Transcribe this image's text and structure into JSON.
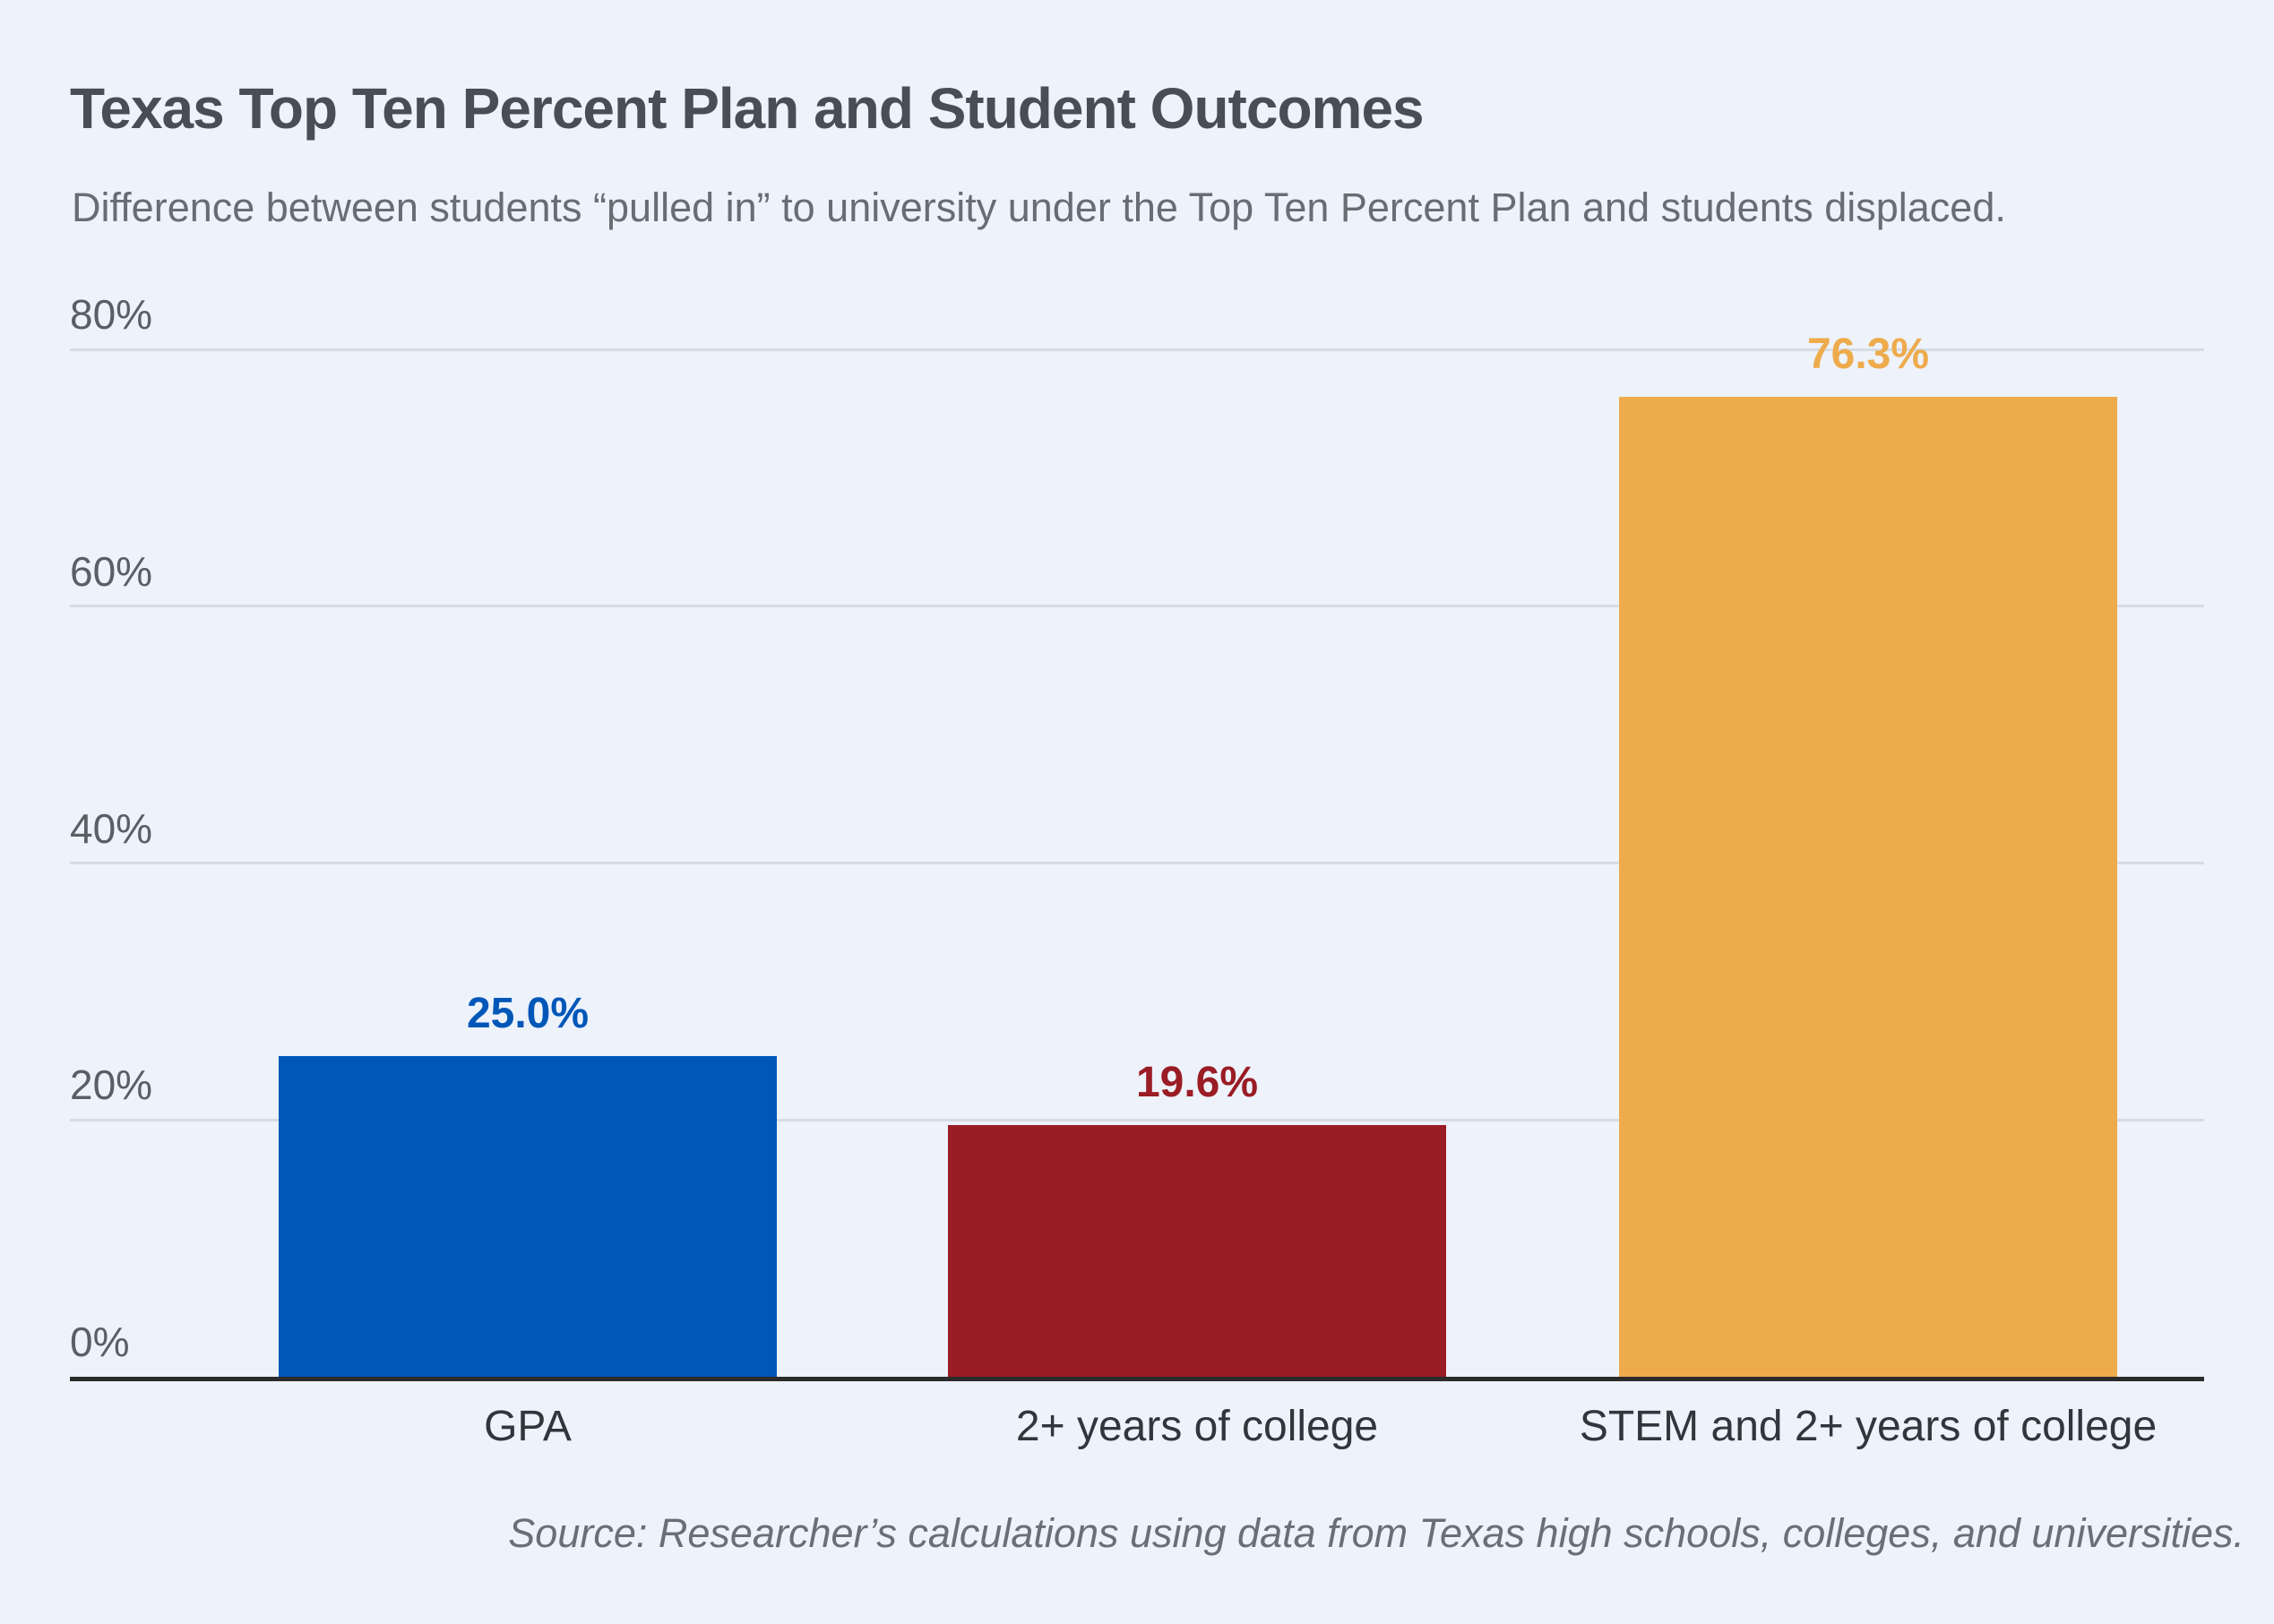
{
  "page": {
    "background_color": "#edf2fb"
  },
  "header": {
    "title": "Texas Top Ten Percent Plan and Student Outcomes",
    "subtitle": "Difference between students “pulled in” to university under the Top Ten Percent Plan and students displaced."
  },
  "footer": {
    "source": "Source: Researcher’s calculations using data from Texas high schools, colleges, and universities."
  },
  "chart_data": {
    "type": "bar",
    "title": "Texas Top Ten Percent Plan and Student Outcomes",
    "subtitle": "Difference between students “pulled in” to university under the Top Ten Percent Plan and students displaced.",
    "categories": [
      "GPA",
      "2+ years of college",
      "STEM and 2+ years of college"
    ],
    "values": [
      25.0,
      19.6,
      76.3
    ],
    "value_labels": [
      "25.0%",
      "19.6%",
      "76.3%"
    ],
    "bar_colors": [
      "#0057b8",
      "#9a1c24",
      "#eeab4c"
    ],
    "label_colors": [
      "#0057b8",
      "#9a1c24",
      "#eeab4c"
    ],
    "xlabel": "",
    "ylabel": "",
    "ylim": [
      0,
      80
    ],
    "yticks": [
      0,
      20,
      40,
      60,
      80
    ],
    "ytick_labels": [
      "0%",
      "20%",
      "40%",
      "60%",
      "80%"
    ],
    "grid": true,
    "gridline_color": "#d7dce4",
    "axis_line_color": "#2b2b2b",
    "legend": false,
    "source": "Source: Researcher’s calculations using data from Texas high schools, colleges, and universities."
  }
}
